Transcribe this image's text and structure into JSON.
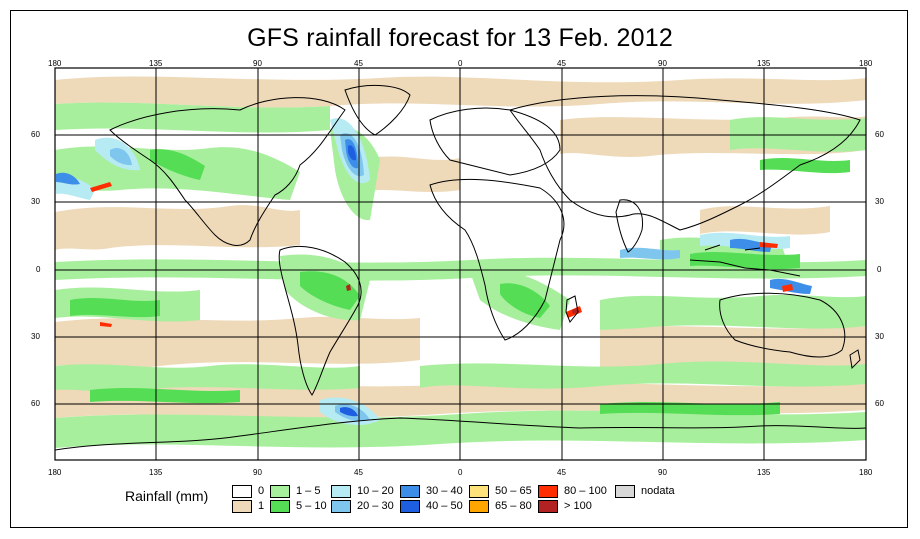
{
  "title": "GFS rainfall forecast for 13 Feb. 2012",
  "axes": {
    "top_ticks": [
      "180",
      "135",
      "90",
      "45",
      "0",
      "45",
      "90",
      "135",
      "180"
    ],
    "bottom_ticks": [
      "180",
      "135",
      "90",
      "45",
      "0",
      "45",
      "90",
      "135",
      "180"
    ],
    "left_ticks": [
      "60",
      "30",
      "0",
      "30",
      "60"
    ],
    "right_ticks": [
      "60",
      "30",
      "0",
      "30",
      "60"
    ]
  },
  "legend": {
    "title": "Rainfall (mm)",
    "items": [
      {
        "label": "0",
        "color": "#ffffff"
      },
      {
        "label": "1",
        "color": "#eed9b9"
      },
      {
        "label": "1 – 5",
        "color": "#a8ef9d"
      },
      {
        "label": "5 – 10",
        "color": "#55dd55"
      },
      {
        "label": "10 – 20",
        "color": "#b7ebf3"
      },
      {
        "label": "20 – 30",
        "color": "#7fc6ef"
      },
      {
        "label": "30 – 40",
        "color": "#3d8ee8"
      },
      {
        "label": "40 – 50",
        "color": "#1e5ee0"
      },
      {
        "label": "50 – 65",
        "color": "#ffe27a"
      },
      {
        "label": "65 – 80",
        "color": "#ffa500"
      },
      {
        "label": "80 – 100",
        "color": "#ff2d00"
      },
      {
        "label": "> 100",
        "color": "#b22222"
      },
      {
        "label": "nodata",
        "color": "#d8d8d8"
      }
    ]
  }
}
